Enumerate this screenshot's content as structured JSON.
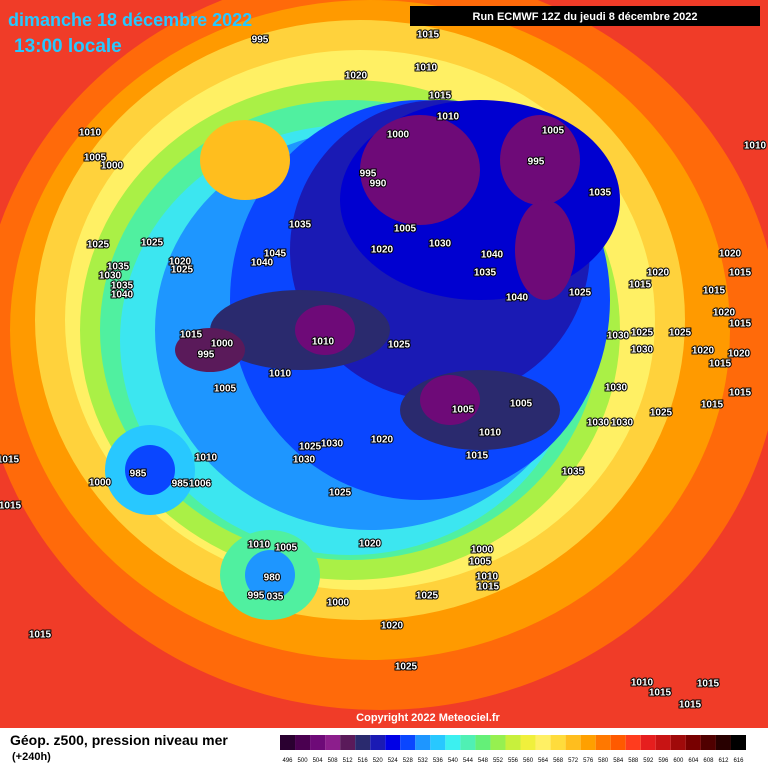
{
  "header": {
    "date": "dimanche 18 décembre 2022",
    "time": "13:00 locale",
    "run": "Run ECMWF 12Z du jeudi 8 décembre 2022"
  },
  "copyright": "Copyright 2022 Meteociel.fr",
  "legend": {
    "title": "Géop. z500, pression niveau mer",
    "subtitle": "(+240h)",
    "scale": {
      "values": [
        496,
        500,
        504,
        508,
        512,
        516,
        520,
        524,
        528,
        532,
        536,
        540,
        544,
        548,
        552,
        556,
        560,
        564,
        568,
        572,
        576,
        580,
        584,
        588,
        592,
        596,
        600,
        604,
        608,
        612,
        616
      ],
      "colors": [
        "#2a0030",
        "#4a0050",
        "#6e0a78",
        "#8c1e8c",
        "#5a1a5a",
        "#2a2a6e",
        "#1a1ab4",
        "#0000e6",
        "#0a46ff",
        "#1e96ff",
        "#28c8ff",
        "#3cf0f0",
        "#50f0b4",
        "#64f078",
        "#96f050",
        "#c8f03c",
        "#f0f03c",
        "#fff064",
        "#ffdc3c",
        "#ffbe1e",
        "#ffa000",
        "#ff7800",
        "#ff5a00",
        "#ff3c1e",
        "#e61e1e",
        "#c81414",
        "#a00a0a",
        "#780000",
        "#500000",
        "#280000",
        "#000000"
      ]
    }
  },
  "isobars": [
    "995",
    "1015",
    "1010",
    "1020",
    "1015",
    "1010",
    "1010",
    "1005",
    "1000",
    "1000",
    "1005",
    "995",
    "995",
    "990",
    "1035",
    "1005",
    "1030",
    "1020",
    "1045",
    "1040",
    "1025",
    "1025",
    "1020",
    "1025",
    "1035",
    "1030",
    "1035",
    "1040",
    "1035",
    "1040",
    "1035",
    "1040",
    "1025",
    "1020",
    "1015",
    "1020",
    "1015",
    "1015",
    "1020",
    "1015",
    "1015",
    "1000",
    "995",
    "1010",
    "1025",
    "1025",
    "1030",
    "1025",
    "1030",
    "1020",
    "1020",
    "1015",
    "1005",
    "1010",
    "1030",
    "1015",
    "1005",
    "1005",
    "1015",
    "1025",
    "1030",
    "1030",
    "1010",
    "1020",
    "1030",
    "1025",
    "1030",
    "1015",
    "1010",
    "985",
    "985",
    "1006",
    "1000",
    "1035",
    "1025",
    "1015",
    "1015",
    "1010",
    "1005",
    "1020",
    "1000",
    "1005",
    "1010",
    "1015",
    "980",
    "995",
    "035",
    "1000",
    "1025",
    "1020",
    "1015",
    "1025",
    "1010",
    "1015",
    "1015",
    "1015",
    "1010"
  ]
}
